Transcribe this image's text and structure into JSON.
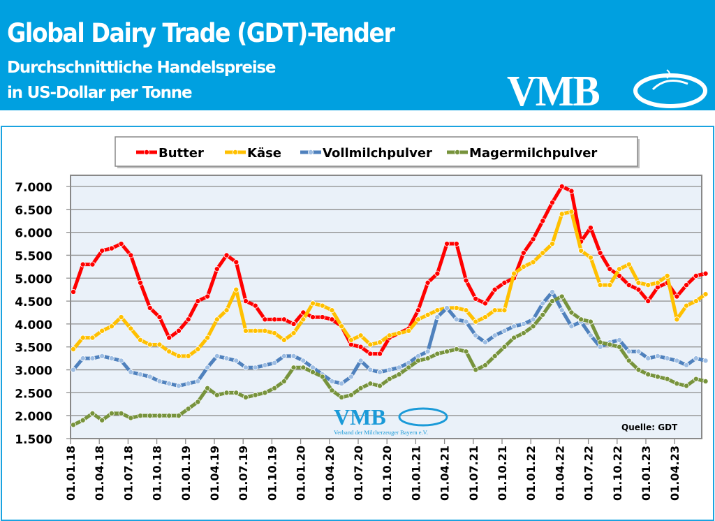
{
  "header": {
    "title": "Global Dairy Trade (GDT)-Tender",
    "subtitle1": "Durchschnittliche Handelspreise",
    "subtitle2": "in US-Dollar per Tonne",
    "logo_text": "VMB"
  },
  "watermark": {
    "logo_text": "VMB",
    "tagline": "Verband der Milcherzeuger Bayern e.V."
  },
  "source_label": "Quelle:  GDT",
  "colors": {
    "header": "#00a0e0",
    "plot_bg": "#eaf1f9"
  },
  "chart_data": {
    "type": "line",
    "x_start": "2018-01",
    "x_step": "month",
    "x_tick_labels": [
      "01.01.18",
      "01.04.18",
      "01.07.18",
      "01.10.18",
      "01.01.19",
      "01.04.19",
      "01.07.19",
      "01.10.19",
      "01.01.20",
      "01.04.20",
      "01.07.20",
      "01.10.20",
      "01.01.21",
      "01.04.21",
      "01.07.21",
      "01.10.21",
      "01.01.22",
      "01.04.22",
      "01.07.22",
      "01.10.22",
      "01.01.23",
      "01.04.23"
    ],
    "y_tick_labels": [
      "1.500",
      "2.000",
      "2.500",
      "3.000",
      "3.500",
      "4.000",
      "4.500",
      "5.000",
      "5.500",
      "6.000",
      "6.500",
      "7.000"
    ],
    "ylim": [
      1500,
      7000
    ],
    "grid": true,
    "legend_position": "top",
    "series": [
      {
        "name": "Butter",
        "color": "#ff0000",
        "marker": "#ff0000",
        "values": [
          4700,
          5300,
          5300,
          5600,
          5650,
          5750,
          5500,
          4900,
          4350,
          4150,
          3700,
          3850,
          4100,
          4500,
          4600,
          5200,
          5500,
          5350,
          4500,
          4400,
          4100,
          4100,
          4100,
          4000,
          4250,
          4150,
          4150,
          4100,
          3950,
          3550,
          3500,
          3350,
          3350,
          3700,
          3800,
          3900,
          4300,
          4900,
          5100,
          5750,
          5750,
          4950,
          4550,
          4450,
          4750,
          4900,
          5000,
          5550,
          5850,
          6250,
          6650,
          7000,
          6900,
          5800,
          6100,
          5550,
          5200,
          5050,
          4850,
          4750,
          4500,
          4800,
          4900,
          4600,
          4850,
          5050,
          5100
        ]
      },
      {
        "name": "Käse",
        "color": "#ffc000",
        "marker": "#ffc000",
        "values": [
          3450,
          3700,
          3700,
          3850,
          3950,
          4150,
          3900,
          3650,
          3550,
          3550,
          3400,
          3300,
          3300,
          3450,
          3700,
          4100,
          4300,
          4750,
          3850,
          3850,
          3850,
          3800,
          3650,
          3800,
          4100,
          4450,
          4400,
          4300,
          3950,
          3650,
          3750,
          3550,
          3600,
          3750,
          3800,
          3850,
          4100,
          4200,
          4300,
          4350,
          4350,
          4300,
          4050,
          4150,
          4300,
          4300,
          5100,
          5250,
          5350,
          5550,
          5750,
          6400,
          6450,
          5600,
          5450,
          4850,
          4850,
          5200,
          5300,
          4900,
          4850,
          4900,
          5050,
          4100,
          4400,
          4500,
          4650
        ]
      },
      {
        "name": "Vollmilchpulver",
        "color": "#4f81bd",
        "marker": "#9dbde3",
        "values": [
          3000,
          3250,
          3250,
          3300,
          3250,
          3200,
          2950,
          2900,
          2850,
          2750,
          2700,
          2650,
          2700,
          2750,
          3050,
          3300,
          3250,
          3200,
          3050,
          3050,
          3100,
          3150,
          3300,
          3300,
          3200,
          3050,
          2900,
          2750,
          2700,
          2850,
          3200,
          3000,
          2950,
          3000,
          3050,
          3150,
          3300,
          3400,
          4150,
          4350,
          4100,
          4050,
          3750,
          3600,
          3750,
          3850,
          3950,
          4000,
          4100,
          4450,
          4700,
          4300,
          3950,
          4050,
          3750,
          3500,
          3600,
          3650,
          3400,
          3400,
          3250,
          3300,
          3250,
          3200,
          3100,
          3250,
          3200
        ]
      },
      {
        "name": "Magermilchpulver",
        "color": "#77933c",
        "marker": "#77933c",
        "values": [
          1800,
          1900,
          2050,
          1900,
          2050,
          2050,
          1950,
          2000,
          2000,
          2000,
          2000,
          2000,
          2150,
          2300,
          2600,
          2450,
          2500,
          2500,
          2400,
          2450,
          2500,
          2600,
          2750,
          3050,
          3050,
          2950,
          2850,
          2550,
          2400,
          2450,
          2600,
          2700,
          2650,
          2800,
          2900,
          3050,
          3200,
          3250,
          3350,
          3400,
          3450,
          3400,
          3000,
          3100,
          3300,
          3500,
          3700,
          3800,
          3950,
          4200,
          4500,
          4600,
          4250,
          4100,
          4050,
          3600,
          3550,
          3500,
          3200,
          3000,
          2900,
          2850,
          2800,
          2700,
          2650,
          2800,
          2750
        ]
      }
    ]
  }
}
